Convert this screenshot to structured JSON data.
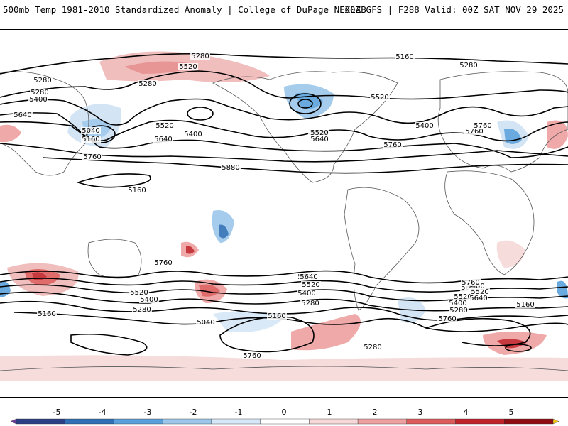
{
  "header": {
    "left": "500mb Temp 1981-2010 Standardized Anomaly | College of DuPage NEXLAB",
    "right": "00Z GFS | F288 Valid: 00Z SAT NOV 29 2025"
  },
  "colorbar": {
    "ticks": [
      "-5",
      "-4",
      "-3",
      "-2",
      "-1",
      "0",
      "1",
      "2",
      "3",
      "4",
      "5"
    ],
    "colors": [
      "#6a3d9a",
      "#2b3f86",
      "#2f6fb5",
      "#5aa1dc",
      "#9cc7ea",
      "#d6e7f7",
      "#ffffff",
      "#f6d8d8",
      "#eea0a0",
      "#dc5c5c",
      "#c0242a",
      "#8e0c12",
      "#f6c51a"
    ]
  },
  "contour_labels": [
    {
      "text": "5280"
    },
    {
      "text": "5520"
    },
    {
      "text": "5160"
    },
    {
      "text": "5280"
    },
    {
      "text": "5400"
    },
    {
      "text": "5640"
    },
    {
      "text": "5040"
    },
    {
      "text": "5160"
    },
    {
      "text": "5280"
    },
    {
      "text": "5520"
    },
    {
      "text": "5400"
    },
    {
      "text": "5640"
    },
    {
      "text": "5760"
    },
    {
      "text": "5760"
    },
    {
      "text": "5880"
    },
    {
      "text": "5160"
    },
    {
      "text": "5280"
    },
    {
      "text": "5280"
    },
    {
      "text": "5520"
    },
    {
      "text": "5640"
    },
    {
      "text": "5400"
    },
    {
      "text": "5760"
    },
    {
      "text": "5520"
    },
    {
      "text": "5640"
    },
    {
      "text": "5760"
    },
    {
      "text": "5760"
    },
    {
      "text": "5640"
    },
    {
      "text": "5520"
    },
    {
      "text": "5400"
    },
    {
      "text": "5280"
    },
    {
      "text": "5160"
    },
    {
      "text": "5040"
    },
    {
      "text": "5160"
    },
    {
      "text": "5760"
    },
    {
      "text": "5640"
    },
    {
      "text": "5520"
    },
    {
      "text": "5400"
    },
    {
      "text": "5280"
    },
    {
      "text": "5760"
    },
    {
      "text": "5640"
    },
    {
      "text": "5520"
    },
    {
      "text": "5400"
    },
    {
      "text": "5280"
    },
    {
      "text": "5160"
    },
    {
      "text": "5280"
    },
    {
      "text": "5640"
    },
    {
      "text": "5520"
    },
    {
      "text": "5400"
    },
    {
      "text": "5760"
    }
  ]
}
